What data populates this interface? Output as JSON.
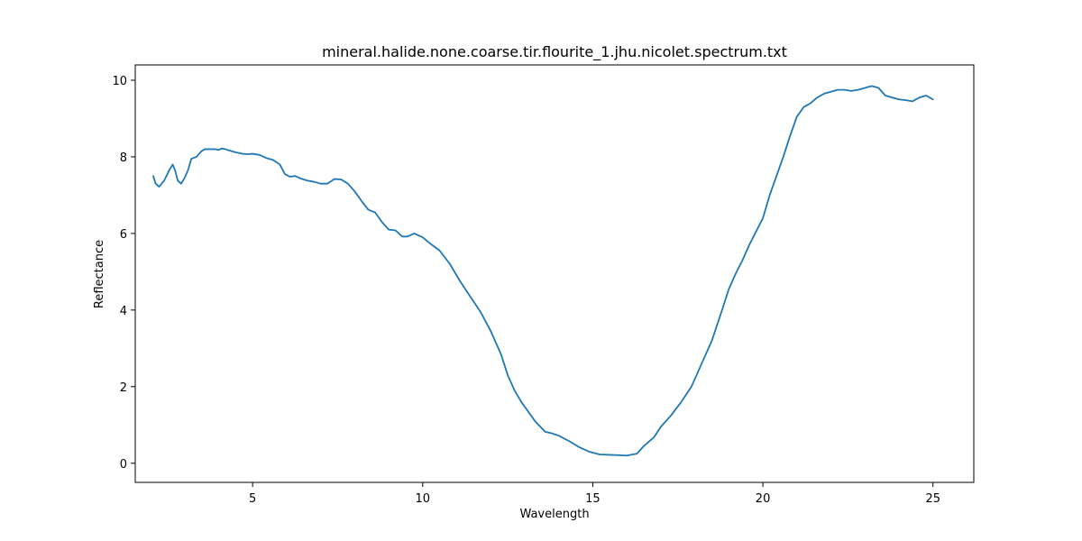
{
  "chart_data": {
    "type": "line",
    "title": "mineral.halide.none.coarse.tir.flourite_1.jhu.nicolet.spectrum.txt",
    "xlabel": "Wavelength",
    "ylabel": "Reflectance",
    "xlim": [
      1.55,
      26.2
    ],
    "ylim": [
      -0.5,
      10.4
    ],
    "xticks": [
      5,
      10,
      15,
      20,
      25
    ],
    "yticks": [
      0,
      2,
      4,
      6,
      8,
      10
    ],
    "grid": false,
    "line_color": "#1f77b4",
    "series": [
      {
        "x": [
          2.08,
          2.15,
          2.25,
          2.4,
          2.55,
          2.65,
          2.72,
          2.8,
          2.9,
          3.0,
          3.1,
          3.2,
          3.35,
          3.5,
          3.6,
          3.75,
          3.9,
          4.0,
          4.1,
          4.2,
          4.3,
          4.5,
          4.7,
          4.85,
          5.0,
          5.2,
          5.4,
          5.6,
          5.8,
          5.95,
          6.1,
          6.25,
          6.4,
          6.6,
          6.8,
          7.0,
          7.2,
          7.4,
          7.6,
          7.8,
          8.0,
          8.2,
          8.4,
          8.6,
          8.8,
          9.0,
          9.2,
          9.4,
          9.55,
          9.75,
          10.0,
          10.2,
          10.5,
          10.8,
          11.1,
          11.4,
          11.7,
          12.0,
          12.3,
          12.5,
          12.7,
          12.9,
          13.1,
          13.3,
          13.6,
          13.8,
          14.0,
          14.3,
          14.6,
          14.9,
          15.2,
          15.5,
          15.8,
          16.0,
          16.3,
          16.5,
          16.8,
          17.0,
          17.3,
          17.6,
          17.9,
          18.2,
          18.5,
          18.8,
          19.0,
          19.2,
          19.4,
          19.6,
          19.8,
          20.0,
          20.2,
          20.4,
          20.6,
          20.8,
          21.0,
          21.2,
          21.4,
          21.6,
          21.8,
          22.0,
          22.2,
          22.4,
          22.6,
          22.8,
          23.0,
          23.2,
          23.4,
          23.6,
          23.8,
          24.0,
          24.2,
          24.4,
          24.6,
          24.8,
          25.0
        ],
        "y": [
          7.5,
          7.3,
          7.22,
          7.38,
          7.65,
          7.8,
          7.65,
          7.38,
          7.3,
          7.45,
          7.65,
          7.95,
          8.0,
          8.15,
          8.2,
          8.2,
          8.2,
          8.18,
          8.22,
          8.2,
          8.17,
          8.12,
          8.08,
          8.07,
          8.08,
          8.05,
          7.97,
          7.92,
          7.8,
          7.55,
          7.48,
          7.5,
          7.44,
          7.38,
          7.35,
          7.3,
          7.3,
          7.42,
          7.41,
          7.3,
          7.1,
          6.85,
          6.62,
          6.55,
          6.3,
          6.1,
          6.08,
          5.92,
          5.92,
          6.0,
          5.9,
          5.75,
          5.55,
          5.2,
          4.75,
          4.35,
          3.95,
          3.45,
          2.85,
          2.3,
          1.9,
          1.6,
          1.35,
          1.1,
          0.82,
          0.78,
          0.72,
          0.58,
          0.42,
          0.3,
          0.23,
          0.22,
          0.21,
          0.2,
          0.25,
          0.45,
          0.68,
          0.95,
          1.25,
          1.6,
          2.0,
          2.6,
          3.2,
          4.0,
          4.55,
          4.95,
          5.3,
          5.7,
          6.05,
          6.4,
          7.0,
          7.5,
          8.0,
          8.55,
          9.05,
          9.3,
          9.4,
          9.55,
          9.65,
          9.7,
          9.75,
          9.75,
          9.72,
          9.75,
          9.8,
          9.85,
          9.8,
          9.6,
          9.55,
          9.5,
          9.48,
          9.45,
          9.55,
          9.6,
          9.5
        ]
      }
    ]
  }
}
